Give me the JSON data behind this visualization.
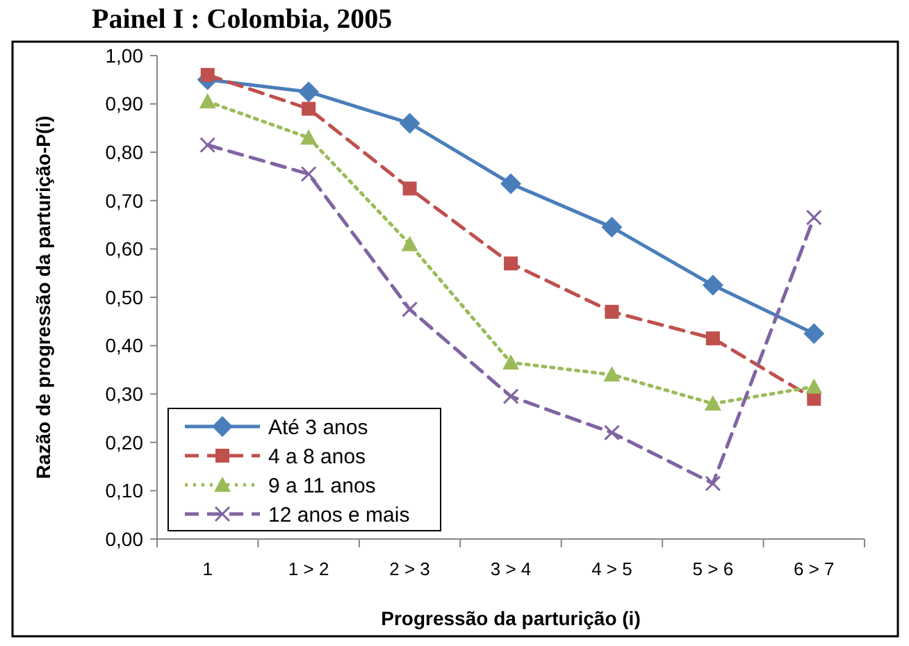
{
  "chart_data": {
    "type": "line",
    "title": "Painel I : Colombia, 2005",
    "xlabel": "Progressão da parturição  (i)",
    "ylabel": "Razão de progressão da parturição-P(i)",
    "categories": [
      "1",
      "1 > 2",
      "2 > 3",
      "3 > 4",
      "4 > 5",
      "5 > 6",
      "6 > 7"
    ],
    "series": [
      {
        "name": "Até 3 anos",
        "color": "#4a7ebb",
        "marker": "diamond",
        "line_style": "solid",
        "values": [
          0.95,
          0.925,
          0.86,
          0.735,
          0.645,
          0.525,
          0.425
        ]
      },
      {
        "name": "4 a 8 anos",
        "color": "#c0504d",
        "marker": "square",
        "line_style": "dashed",
        "values": [
          0.96,
          0.89,
          0.725,
          0.57,
          0.47,
          0.415,
          0.29
        ]
      },
      {
        "name": "9 a 11 anos",
        "color": "#9bbb59",
        "marker": "triangle",
        "line_style": "dotted",
        "values": [
          0.905,
          0.83,
          0.61,
          0.365,
          0.34,
          0.28,
          0.315
        ]
      },
      {
        "name": "12 anos e mais",
        "color": "#8064a2",
        "marker": "cross",
        "line_style": "dashed",
        "values": [
          0.815,
          0.755,
          0.475,
          0.295,
          0.22,
          0.115,
          0.665
        ]
      }
    ],
    "ylim": [
      0,
      1
    ],
    "yticks": [
      {
        "value": 0,
        "label": "0,00"
      },
      {
        "value": 0.1,
        "label": "0,10"
      },
      {
        "value": 0.2,
        "label": "0,20"
      },
      {
        "value": 0.3,
        "label": "0,30"
      },
      {
        "value": 0.4,
        "label": "0,40"
      },
      {
        "value": 0.5,
        "label": "0,50"
      },
      {
        "value": 0.6,
        "label": "0,60"
      },
      {
        "value": 0.7,
        "label": "0,70"
      },
      {
        "value": 0.8,
        "label": "0,80"
      },
      {
        "value": 0.9,
        "label": "0,90"
      },
      {
        "value": 1,
        "label": "1,00"
      }
    ],
    "grid": false,
    "legend": "bottom left"
  }
}
